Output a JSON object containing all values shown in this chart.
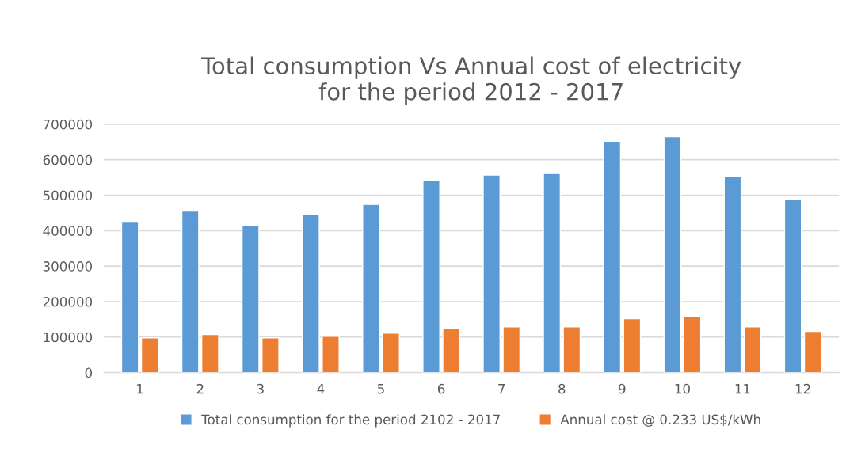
{
  "chart_data": {
    "type": "bar",
    "title": "Total consumption Vs Annual cost of electricity\nfor the period 2012 - 2017",
    "categories": [
      "1",
      "2",
      "3",
      "4",
      "5",
      "6",
      "7",
      "8",
      "9",
      "10",
      "11",
      "12"
    ],
    "series": [
      {
        "name": "Total consumption for the period 2102 - 2017",
        "color": "#5b9bd5",
        "values": [
          424000,
          455000,
          415000,
          447000,
          474000,
          543000,
          557000,
          561000,
          652000,
          665000,
          552000,
          488000
        ]
      },
      {
        "name": "Annual cost @ 0.233 US$/kWh",
        "color": "#ed7d31",
        "values": [
          98000,
          107000,
          98000,
          102000,
          111000,
          125000,
          129000,
          129000,
          152000,
          157000,
          129000,
          116000
        ]
      }
    ],
    "ylim": [
      0,
      700000
    ],
    "yticks": [
      0,
      100000,
      200000,
      300000,
      400000,
      500000,
      600000,
      700000
    ],
    "grid": "y",
    "legend": "bottom"
  }
}
